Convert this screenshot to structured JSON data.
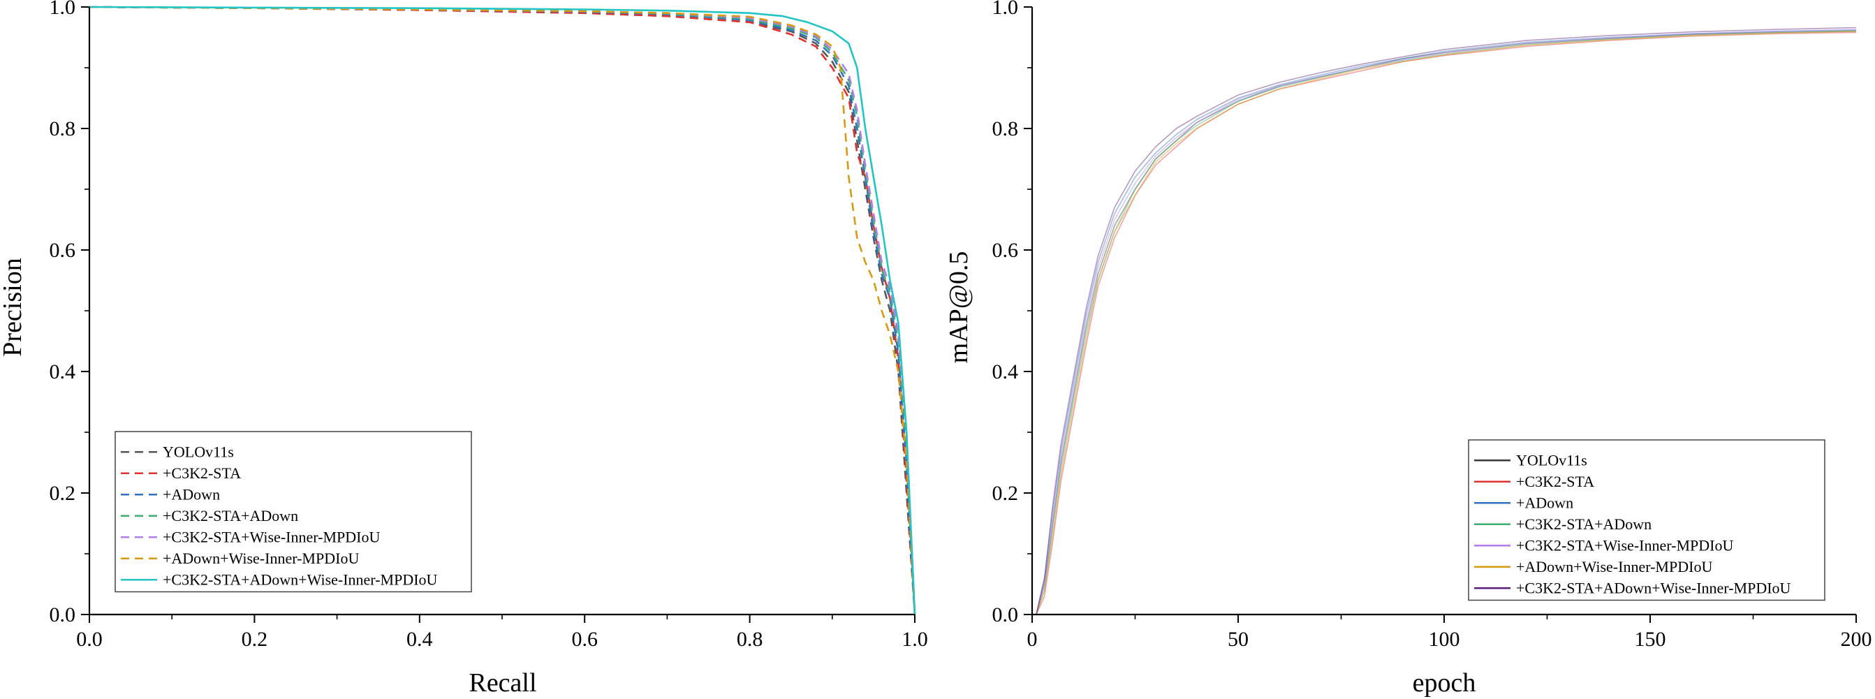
{
  "chart_data": [
    {
      "type": "line",
      "xlabel": "Recall",
      "ylabel": "Precision",
      "xlim": [
        0.0,
        1.0
      ],
      "ylim": [
        0.0,
        1.0
      ],
      "xticks": [
        0.0,
        0.2,
        0.4,
        0.6,
        0.8,
        1.0
      ],
      "yticks": [
        0.0,
        0.2,
        0.4,
        0.6,
        0.8,
        1.0
      ],
      "xtick_labels": [
        "0.0",
        "0.2",
        "0.4",
        "0.6",
        "0.8",
        "1.0"
      ],
      "ytick_labels": [
        "0.0",
        "0.2",
        "0.4",
        "0.6",
        "0.8",
        "1.0"
      ],
      "grid": false,
      "legend_position": "lower-left",
      "series": [
        {
          "name": "YOLOv11s",
          "color": "#555555",
          "dashed": true,
          "x": [
            0.0,
            0.2,
            0.4,
            0.6,
            0.7,
            0.8,
            0.85,
            0.88,
            0.9,
            0.92,
            0.93,
            0.94,
            0.95,
            0.96,
            0.97,
            0.98,
            0.99,
            1.0
          ],
          "y": [
            1.0,
            0.998,
            0.995,
            0.99,
            0.985,
            0.975,
            0.96,
            0.94,
            0.91,
            0.86,
            0.78,
            0.7,
            0.62,
            0.55,
            0.5,
            0.4,
            0.2,
            0.0
          ]
        },
        {
          "name": "+C3K2-STA",
          "color": "#e03030",
          "dashed": true,
          "x": [
            0.0,
            0.2,
            0.4,
            0.6,
            0.7,
            0.8,
            0.85,
            0.88,
            0.9,
            0.92,
            0.93,
            0.94,
            0.95,
            0.96,
            0.97,
            0.98,
            0.99,
            1.0
          ],
          "y": [
            1.0,
            0.998,
            0.995,
            0.99,
            0.985,
            0.975,
            0.955,
            0.935,
            0.9,
            0.85,
            0.76,
            0.72,
            0.64,
            0.57,
            0.52,
            0.42,
            0.22,
            0.0
          ]
        },
        {
          "name": "+ADown",
          "color": "#2f72c4",
          "dashed": true,
          "x": [
            0.0,
            0.2,
            0.4,
            0.6,
            0.7,
            0.8,
            0.85,
            0.88,
            0.9,
            0.92,
            0.93,
            0.94,
            0.95,
            0.96,
            0.97,
            0.98,
            0.99,
            1.0
          ],
          "y": [
            1.0,
            0.998,
            0.996,
            0.992,
            0.988,
            0.978,
            0.962,
            0.945,
            0.92,
            0.87,
            0.8,
            0.72,
            0.63,
            0.56,
            0.52,
            0.43,
            0.25,
            0.0
          ]
        },
        {
          "name": "+C3K2-STA+ADown",
          "color": "#3cae6e",
          "dashed": true,
          "x": [
            0.0,
            0.2,
            0.4,
            0.6,
            0.7,
            0.8,
            0.85,
            0.88,
            0.9,
            0.92,
            0.93,
            0.94,
            0.95,
            0.96,
            0.97,
            0.98,
            0.99,
            1.0
          ],
          "y": [
            1.0,
            0.998,
            0.996,
            0.993,
            0.989,
            0.98,
            0.965,
            0.95,
            0.925,
            0.88,
            0.82,
            0.73,
            0.65,
            0.57,
            0.53,
            0.45,
            0.28,
            0.0
          ]
        },
        {
          "name": "+C3K2-STA+Wise-Inner-MPDIoU",
          "color": "#b07ee8",
          "dashed": true,
          "x": [
            0.0,
            0.2,
            0.4,
            0.6,
            0.7,
            0.8,
            0.85,
            0.88,
            0.9,
            0.92,
            0.93,
            0.94,
            0.95,
            0.96,
            0.97,
            0.98,
            0.99,
            1.0
          ],
          "y": [
            1.0,
            0.998,
            0.996,
            0.993,
            0.99,
            0.982,
            0.968,
            0.952,
            0.93,
            0.89,
            0.83,
            0.74,
            0.66,
            0.58,
            0.54,
            0.46,
            0.3,
            0.0
          ]
        },
        {
          "name": "+ADown+Wise-Inner-MPDIoU",
          "color": "#d99a12",
          "dashed": true,
          "x": [
            0.0,
            0.2,
            0.4,
            0.6,
            0.7,
            0.8,
            0.85,
            0.88,
            0.9,
            0.91,
            0.92,
            0.93,
            0.94,
            0.95,
            0.96,
            0.97,
            0.98,
            0.99,
            1.0
          ],
          "y": [
            1.0,
            0.998,
            0.996,
            0.993,
            0.99,
            0.984,
            0.97,
            0.955,
            0.935,
            0.9,
            0.72,
            0.62,
            0.58,
            0.55,
            0.5,
            0.46,
            0.4,
            0.25,
            0.0
          ]
        },
        {
          "name": "+C3K2-STA+ADown+Wise-Inner-MPDIoU",
          "color": "#22c4c4",
          "dashed": false,
          "x": [
            0.0,
            0.2,
            0.4,
            0.6,
            0.7,
            0.8,
            0.84,
            0.87,
            0.9,
            0.92,
            0.93,
            0.94,
            0.95,
            0.96,
            0.97,
            0.98,
            0.99,
            1.0
          ],
          "y": [
            1.0,
            0.999,
            0.998,
            0.996,
            0.994,
            0.99,
            0.985,
            0.975,
            0.96,
            0.94,
            0.9,
            0.8,
            0.72,
            0.64,
            0.55,
            0.48,
            0.3,
            0.0
          ]
        }
      ]
    },
    {
      "type": "line",
      "xlabel": "epoch",
      "ylabel": "mAP@0.5",
      "xlim": [
        0,
        200
      ],
      "ylim": [
        0.0,
        1.0
      ],
      "xticks": [
        0,
        50,
        100,
        150,
        200
      ],
      "yticks": [
        0.0,
        0.2,
        0.4,
        0.6,
        0.8,
        1.0
      ],
      "xtick_labels": [
        "0",
        "50",
        "100",
        "150",
        "200"
      ],
      "ytick_labels": [
        "0.0",
        "0.2",
        "0.4",
        "0.6",
        "0.8",
        "1.0"
      ],
      "grid": false,
      "legend_position": "lower-right",
      "series": [
        {
          "name": "YOLOv11s",
          "color": "#3a3a3a",
          "dashed": false,
          "x": [
            1,
            3,
            5,
            7,
            10,
            13,
            16,
            20,
            25,
            30,
            35,
            40,
            50,
            60,
            70,
            80,
            90,
            100,
            120,
            140,
            160,
            180,
            200
          ],
          "y": [
            0.0,
            0.05,
            0.15,
            0.25,
            0.36,
            0.47,
            0.56,
            0.64,
            0.7,
            0.75,
            0.78,
            0.81,
            0.845,
            0.87,
            0.885,
            0.9,
            0.915,
            0.925,
            0.94,
            0.948,
            0.955,
            0.958,
            0.96
          ]
        },
        {
          "name": "+C3K2-STA",
          "color": "#e03030",
          "dashed": false,
          "x": [
            1,
            3,
            5,
            7,
            10,
            13,
            16,
            20,
            25,
            30,
            35,
            40,
            50,
            60,
            70,
            80,
            90,
            100,
            120,
            140,
            160,
            180,
            200
          ],
          "y": [
            0.0,
            0.03,
            0.12,
            0.22,
            0.33,
            0.44,
            0.54,
            0.62,
            0.69,
            0.74,
            0.77,
            0.8,
            0.84,
            0.865,
            0.88,
            0.895,
            0.91,
            0.92,
            0.935,
            0.945,
            0.952,
            0.956,
            0.958
          ]
        },
        {
          "name": "+ADown",
          "color": "#2f72c4",
          "dashed": false,
          "x": [
            1,
            3,
            5,
            7,
            10,
            13,
            16,
            20,
            25,
            30,
            35,
            40,
            50,
            60,
            70,
            80,
            90,
            100,
            120,
            140,
            160,
            180,
            200
          ],
          "y": [
            0.0,
            0.06,
            0.17,
            0.27,
            0.38,
            0.49,
            0.58,
            0.66,
            0.72,
            0.76,
            0.79,
            0.815,
            0.85,
            0.872,
            0.888,
            0.903,
            0.915,
            0.927,
            0.942,
            0.95,
            0.956,
            0.96,
            0.962
          ]
        },
        {
          "name": "+C3K2-STA+ADown",
          "color": "#3cae6e",
          "dashed": false,
          "x": [
            1,
            3,
            5,
            7,
            10,
            13,
            16,
            20,
            25,
            30,
            35,
            40,
            50,
            60,
            70,
            80,
            90,
            100,
            120,
            140,
            160,
            180,
            200
          ],
          "y": [
            0.0,
            0.04,
            0.14,
            0.24,
            0.35,
            0.46,
            0.55,
            0.63,
            0.7,
            0.75,
            0.78,
            0.805,
            0.845,
            0.868,
            0.884,
            0.9,
            0.912,
            0.922,
            0.938,
            0.947,
            0.954,
            0.958,
            0.961
          ]
        },
        {
          "name": "+C3K2-STA+Wise-Inner-MPDIoU",
          "color": "#b07ee8",
          "dashed": false,
          "x": [
            1,
            3,
            5,
            7,
            10,
            13,
            16,
            20,
            25,
            30,
            35,
            40,
            50,
            60,
            70,
            80,
            90,
            100,
            120,
            140,
            160,
            180,
            200
          ],
          "y": [
            0.0,
            0.05,
            0.16,
            0.26,
            0.37,
            0.48,
            0.57,
            0.65,
            0.71,
            0.755,
            0.785,
            0.81,
            0.848,
            0.87,
            0.886,
            0.9,
            0.913,
            0.924,
            0.94,
            0.949,
            0.956,
            0.96,
            0.963
          ]
        },
        {
          "name": "+ADown+Wise-Inner-MPDIoU",
          "color": "#d99a12",
          "dashed": false,
          "x": [
            1,
            3,
            5,
            7,
            10,
            13,
            16,
            20,
            25,
            30,
            35,
            40,
            50,
            60,
            70,
            80,
            90,
            100,
            120,
            140,
            160,
            180,
            200
          ],
          "y": [
            0.0,
            0.04,
            0.13,
            0.23,
            0.34,
            0.45,
            0.55,
            0.63,
            0.69,
            0.745,
            0.775,
            0.8,
            0.84,
            0.865,
            0.882,
            0.898,
            0.91,
            0.921,
            0.937,
            0.946,
            0.953,
            0.957,
            0.96
          ]
        },
        {
          "name": "+C3K2-STA+ADown+Wise-Inner-MPDIoU",
          "color": "#5a1f7a",
          "dashed": false,
          "x": [
            1,
            3,
            5,
            7,
            10,
            13,
            16,
            20,
            25,
            30,
            35,
            40,
            50,
            60,
            70,
            80,
            90,
            100,
            120,
            140,
            160,
            180,
            200
          ],
          "y": [
            0.0,
            0.06,
            0.18,
            0.28,
            0.39,
            0.5,
            0.59,
            0.67,
            0.73,
            0.77,
            0.8,
            0.82,
            0.855,
            0.876,
            0.892,
            0.906,
            0.918,
            0.93,
            0.945,
            0.953,
            0.959,
            0.963,
            0.966
          ]
        }
      ]
    }
  ]
}
